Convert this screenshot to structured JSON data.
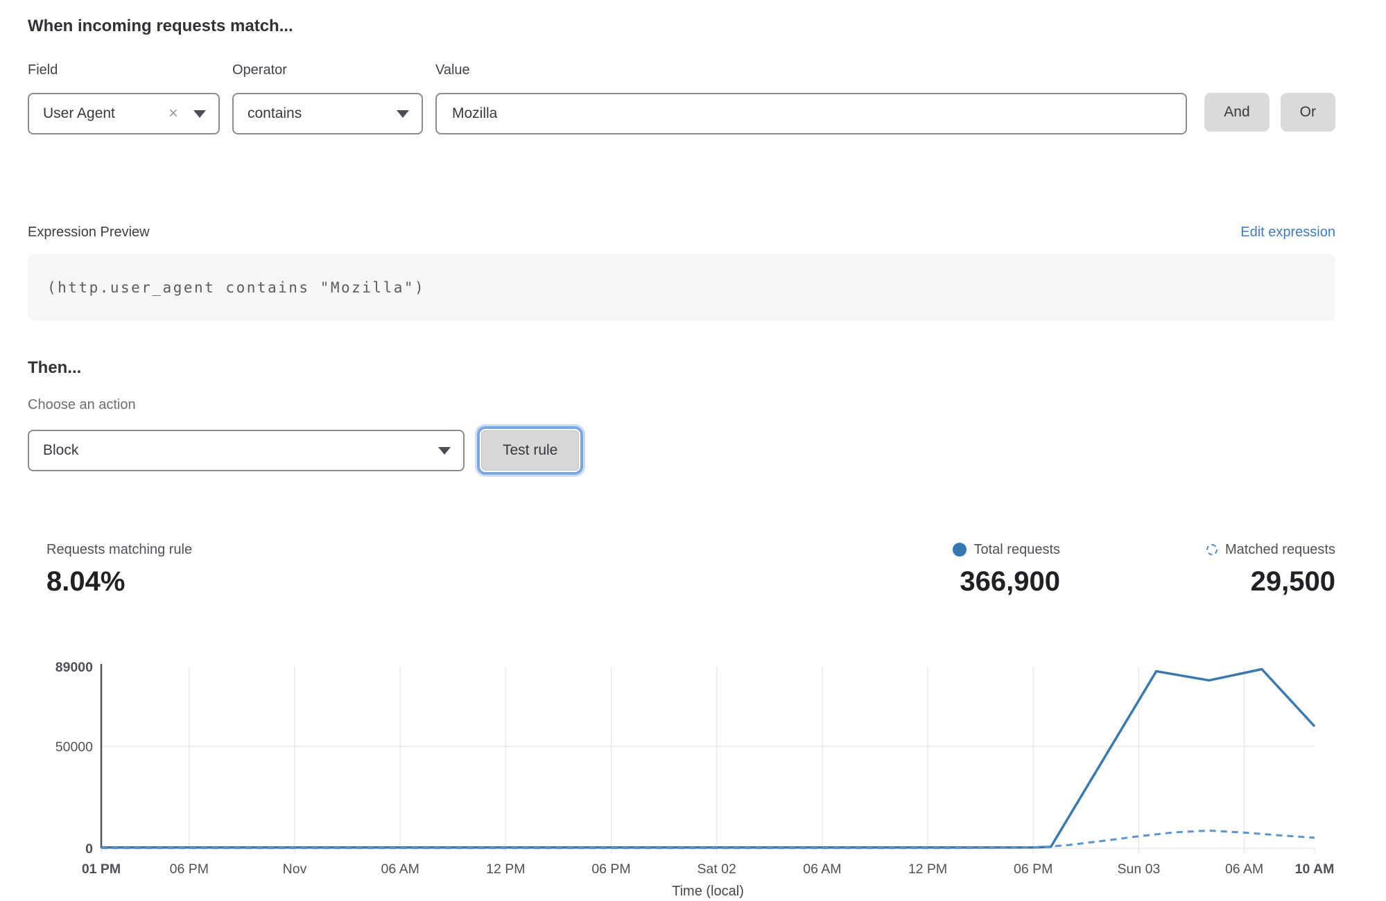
{
  "match_builder": {
    "heading": "When incoming requests match...",
    "field": {
      "label": "Field",
      "value": "User Agent"
    },
    "operator": {
      "label": "Operator",
      "value": "contains"
    },
    "value": {
      "label": "Value",
      "value": "Mozilla"
    },
    "and_label": "And",
    "or_label": "Or"
  },
  "expression_preview": {
    "label": "Expression Preview",
    "edit_link": "Edit expression",
    "expression": "(http.user_agent contains \"Mozilla\")"
  },
  "action_section": {
    "heading": "Then...",
    "choose_label": "Choose an action",
    "action_value": "Block",
    "test_button": "Test rule"
  },
  "stats": {
    "matching": {
      "label": "Requests matching rule",
      "value": "8.04%"
    },
    "total": {
      "label": "Total requests",
      "value": "366,900",
      "marker_color": "#3677b3"
    },
    "matched": {
      "label": "Matched requests",
      "value": "29,500",
      "marker_color": "#4a8ccb"
    }
  },
  "icons": {
    "field_clear": "x-icon",
    "select_caret": "chevron-down-icon",
    "total_marker": "filled-circle-icon",
    "matched_marker": "dashed-circle-icon"
  },
  "chart_data": {
    "type": "line",
    "title": "",
    "xlabel": "Time (local)",
    "ylabel": "",
    "ylim": [
      0,
      89000
    ],
    "x_total_hours": 69,
    "grid": true,
    "legend_position": "above-right",
    "y_ticks": [
      {
        "value": 0,
        "label": "0",
        "bold": true,
        "gridline": false
      },
      {
        "value": 50000,
        "label": "50000",
        "bold": false,
        "gridline": true
      },
      {
        "value": 89000,
        "label": "89000",
        "bold": true,
        "gridline": false
      }
    ],
    "x_ticks": [
      {
        "hour": 0,
        "label": "01 PM",
        "bold": true
      },
      {
        "hour": 5,
        "label": "06 PM",
        "bold": false
      },
      {
        "hour": 11,
        "label": "Nov",
        "bold": false
      },
      {
        "hour": 17,
        "label": "06 AM",
        "bold": false
      },
      {
        "hour": 23,
        "label": "12 PM",
        "bold": false
      },
      {
        "hour": 29,
        "label": "06 PM",
        "bold": false
      },
      {
        "hour": 35,
        "label": "Sat 02",
        "bold": false
      },
      {
        "hour": 41,
        "label": "06 AM",
        "bold": false
      },
      {
        "hour": 47,
        "label": "12 PM",
        "bold": false
      },
      {
        "hour": 53,
        "label": "06 PM",
        "bold": false
      },
      {
        "hour": 59,
        "label": "Sun 03",
        "bold": false
      },
      {
        "hour": 65,
        "label": "06 AM",
        "bold": false
      },
      {
        "hour": 69,
        "label": "10 AM",
        "bold": true
      }
    ],
    "series": [
      {
        "name": "Total requests",
        "style": "solid",
        "color": "#3b79ad",
        "stroke_width": 3.5,
        "dash": "",
        "points": [
          [
            0,
            400
          ],
          [
            6,
            400
          ],
          [
            12,
            400
          ],
          [
            18,
            400
          ],
          [
            24,
            400
          ],
          [
            30,
            400
          ],
          [
            36,
            400
          ],
          [
            42,
            400
          ],
          [
            48,
            400
          ],
          [
            53,
            400
          ],
          [
            54,
            700
          ],
          [
            60,
            86800
          ],
          [
            63,
            82300
          ],
          [
            66,
            87800
          ],
          [
            69,
            59800
          ]
        ]
      },
      {
        "name": "Matched requests",
        "style": "dashed",
        "color": "#5d94cd",
        "stroke_width": 3,
        "dash": "9 7",
        "points": [
          [
            0,
            150
          ],
          [
            6,
            150
          ],
          [
            12,
            150
          ],
          [
            18,
            150
          ],
          [
            24,
            150
          ],
          [
            30,
            150
          ],
          [
            36,
            150
          ],
          [
            42,
            150
          ],
          [
            48,
            150
          ],
          [
            53,
            300
          ],
          [
            55,
            1600
          ],
          [
            57,
            3700
          ],
          [
            59,
            5900
          ],
          [
            61,
            7800
          ],
          [
            63,
            8700
          ],
          [
            65,
            7700
          ],
          [
            67,
            6400
          ],
          [
            69,
            5200
          ]
        ]
      }
    ],
    "colors": {
      "grid": "#e9e9e9",
      "spine": "#515357",
      "tick_text": "#4e5156",
      "axis_label": "#45484c"
    }
  }
}
